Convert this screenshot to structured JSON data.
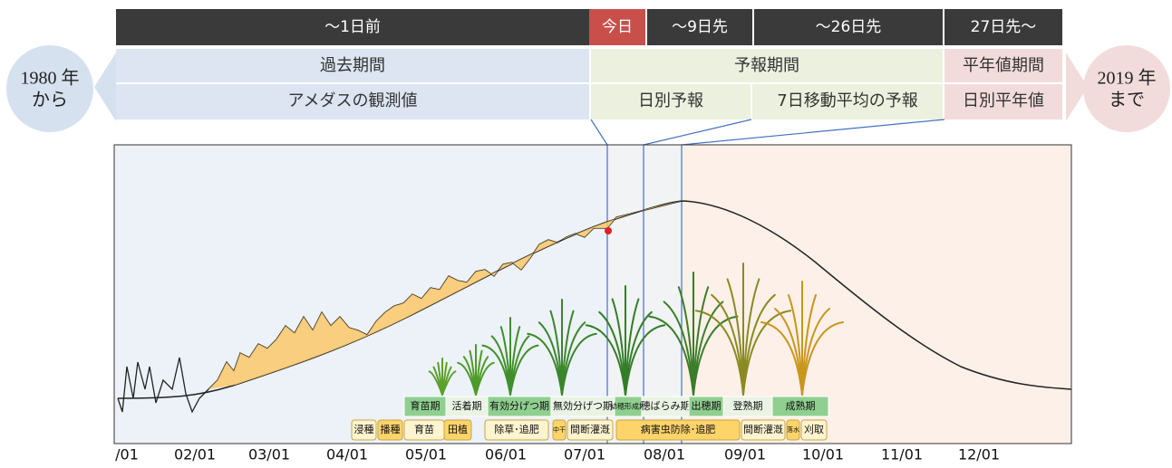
{
  "header": {
    "periods": [
      "〜1日前",
      "今日",
      "〜9日先",
      "〜26日先",
      "27日先〜"
    ],
    "kinds": [
      "過去期間",
      "予報期間",
      "平年値期間"
    ],
    "sources": [
      "アメダスの観測値",
      "日別予報",
      "7日移動平均の予報",
      "日別平年値"
    ]
  },
  "start": {
    "year": "1980 年",
    "suffix": "から"
  },
  "end": {
    "year": "2019 年",
    "suffix": "まで"
  },
  "x_labels": [
    "/01",
    "02/01",
    "03/01",
    "04/01",
    "05/01",
    "06/01",
    "07/01",
    "08/01",
    "09/01",
    "10/01",
    "11/01",
    "12/01"
  ],
  "stages": [
    "育苗期",
    "活着期",
    "有効分げつ期",
    "無効分げつ期",
    "幼穂形成期",
    "穂ばらみ期",
    "出穂期",
    "登熟期",
    "成熟期"
  ],
  "tasks": [
    "浸種",
    "播種",
    "育苗",
    "田植",
    "除草･追肥",
    "中干",
    "間断灌漑",
    "病害虫防除･追肥",
    "間断灌漑",
    "落水",
    "刈取"
  ]
}
